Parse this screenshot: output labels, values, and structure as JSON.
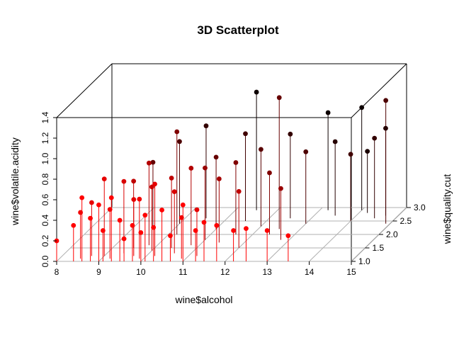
{
  "chart_data": {
    "type": "scatter3d",
    "title": "3D Scatterplot",
    "xlabel": "wine$alcohol",
    "ylabel": "wine$quality.cut",
    "zlabel": "wine$volatile.acidity",
    "xlim": [
      8,
      15
    ],
    "ylim": [
      1,
      3
    ],
    "zlim": [
      0,
      1.4
    ],
    "x_ticks": [
      "8",
      "9",
      "10",
      "11",
      "12",
      "13",
      "14",
      "15"
    ],
    "y_ticks": [
      "1.0",
      "1.5",
      "2.0",
      "2.5",
      "3.0"
    ],
    "z_ticks": [
      "0.0",
      "0.2",
      "0.4",
      "0.6",
      "0.8",
      "1.0",
      "1.2",
      "1.4"
    ],
    "grid": true,
    "drop_lines": true,
    "color_scale": [
      "#ff0000",
      "#000000"
    ],
    "points": [
      [
        8.0,
        1.0,
        0.2
      ],
      [
        8.4,
        1.0,
        0.35
      ],
      [
        8.5,
        1.1,
        0.45
      ],
      [
        8.6,
        1.0,
        0.62
      ],
      [
        8.7,
        1.2,
        0.52
      ],
      [
        8.8,
        1.0,
        0.42
      ],
      [
        9.0,
        1.0,
        0.55
      ],
      [
        9.0,
        1.2,
        0.75
      ],
      [
        9.1,
        1.0,
        0.3
      ],
      [
        9.2,
        1.1,
        0.48
      ],
      [
        9.3,
        1.0,
        0.62
      ],
      [
        9.4,
        1.3,
        0.7
      ],
      [
        9.5,
        1.0,
        0.4
      ],
      [
        9.5,
        1.5,
        0.65
      ],
      [
        9.6,
        1.0,
        0.22
      ],
      [
        9.7,
        1.2,
        0.55
      ],
      [
        9.8,
        1.0,
        0.35
      ],
      [
        9.8,
        1.6,
        0.8
      ],
      [
        9.9,
        1.1,
        0.58
      ],
      [
        10.0,
        1.0,
        0.28
      ],
      [
        10.0,
        1.4,
        0.62
      ],
      [
        10.1,
        1.0,
        0.45
      ],
      [
        10.2,
        1.2,
        0.7
      ],
      [
        10.3,
        1.0,
        0.33
      ],
      [
        10.4,
        1.5,
        0.68
      ],
      [
        10.5,
        1.0,
        0.5
      ],
      [
        10.6,
        1.3,
        0.6
      ],
      [
        10.7,
        1.0,
        0.25
      ],
      [
        10.8,
        1.6,
        0.75
      ],
      [
        10.9,
        1.1,
        0.4
      ],
      [
        11.0,
        1.0,
        0.55
      ],
      [
        11.0,
        1.8,
        0.7
      ],
      [
        11.2,
        1.2,
        0.45
      ],
      [
        11.3,
        1.0,
        0.3
      ],
      [
        11.4,
        1.7,
        0.62
      ],
      [
        11.5,
        1.0,
        0.38
      ],
      [
        11.6,
        2.0,
        0.7
      ],
      [
        11.8,
        1.0,
        0.35
      ],
      [
        12.0,
        1.5,
        0.55
      ],
      [
        12.2,
        1.0,
        0.3
      ],
      [
        12.4,
        2.0,
        0.6
      ],
      [
        12.5,
        1.0,
        0.32
      ],
      [
        12.8,
        1.8,
        0.5
      ],
      [
        13.0,
        1.0,
        0.3
      ],
      [
        13.5,
        1.0,
        0.25
      ],
      [
        9.5,
        2.2,
        0.65
      ],
      [
        10.0,
        2.4,
        0.8
      ],
      [
        10.5,
        2.6,
        0.9
      ],
      [
        11.0,
        2.2,
        0.7
      ],
      [
        11.5,
        2.5,
        0.85
      ],
      [
        12.0,
        2.3,
        0.75
      ],
      [
        12.5,
        2.6,
        0.82
      ],
      [
        13.0,
        2.4,
        0.7
      ],
      [
        13.5,
        2.7,
        0.72
      ],
      [
        14.0,
        2.5,
        0.65
      ],
      [
        14.2,
        2.8,
        0.6
      ],
      [
        10.2,
        2.0,
        1.0
      ],
      [
        11.5,
        2.9,
        1.15
      ],
      [
        12.5,
        2.2,
        1.28
      ],
      [
        13.2,
        2.9,
        0.95
      ],
      [
        14.0,
        2.9,
        1.0
      ],
      [
        14.5,
        2.6,
        0.78
      ],
      [
        14.9,
        2.4,
        1.2
      ],
      [
        14.7,
        2.7,
        0.85
      ]
    ]
  }
}
